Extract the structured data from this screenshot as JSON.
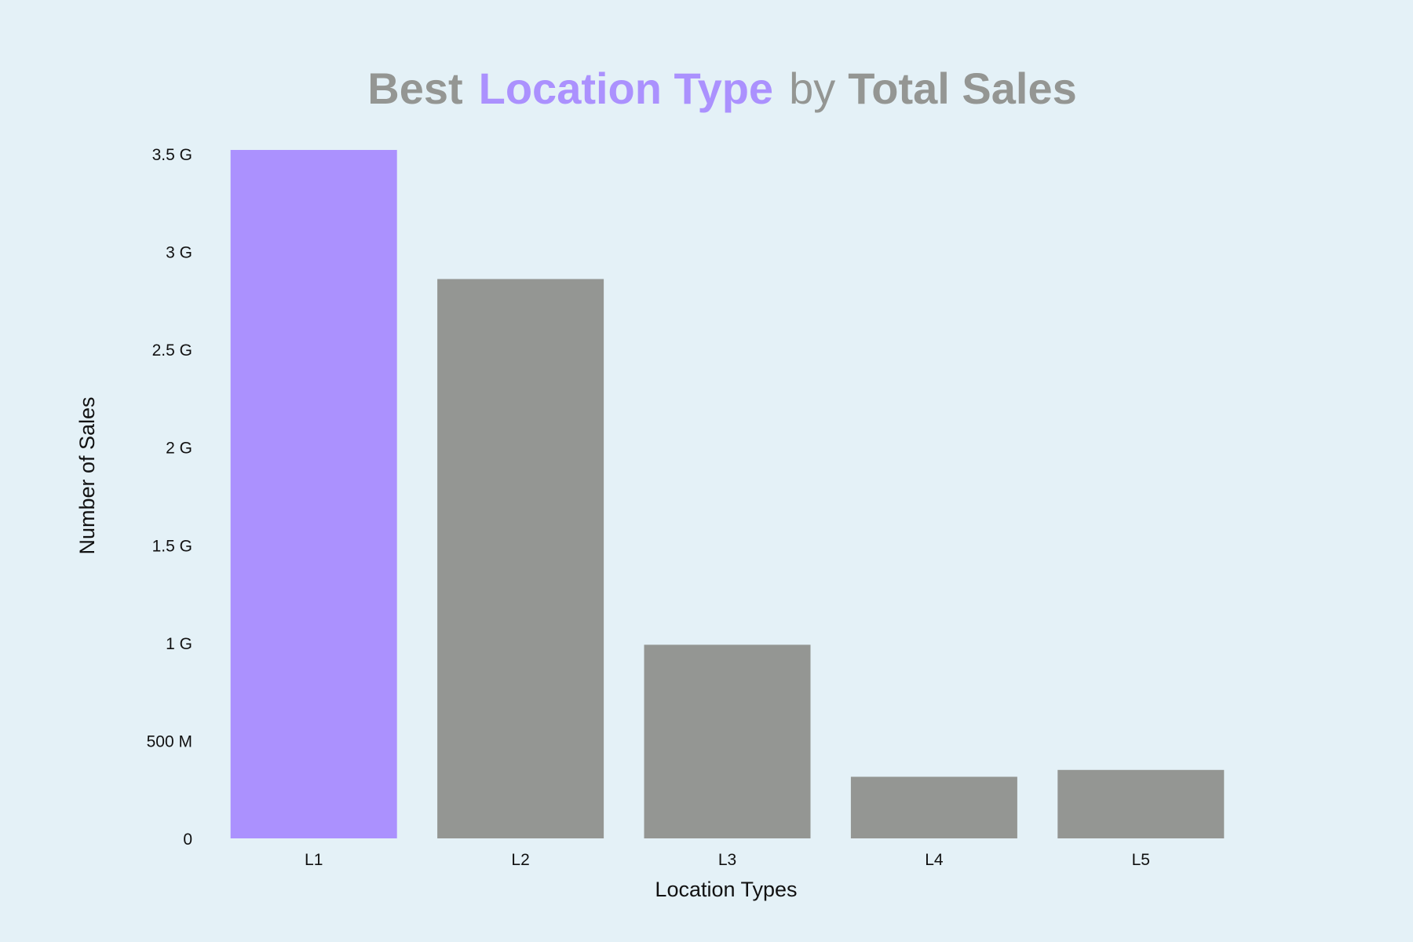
{
  "title": {
    "part1": "Best",
    "part2": "Location Type",
    "part3": "by",
    "part4": "Total Sales"
  },
  "colors": {
    "background": "#e4f1f7",
    "highlight": "#ab91fe",
    "bar": "#949693",
    "title_muted": "#949693",
    "text": "#111111"
  },
  "chart_data": {
    "type": "bar",
    "title": "Best Location Type by Total Sales",
    "xlabel": "Location Types",
    "ylabel": "Number of Sales",
    "categories": [
      "L1",
      "L2",
      "L3",
      "L4",
      "L5"
    ],
    "values": [
      3520000000,
      2860000000,
      990000000,
      315000000,
      350000000
    ],
    "highlight_category": "L1",
    "ylim": [
      0,
      3500000000
    ],
    "yticks": [
      0,
      500000000,
      1000000000,
      1500000000,
      2000000000,
      2500000000,
      3000000000,
      3500000000
    ],
    "ytick_labels": [
      "0",
      "500 M",
      "1 G",
      "1.5 G",
      "2 G",
      "2.5 G",
      "3 G",
      "3.5 G"
    ],
    "grid": false,
    "legend": "none"
  }
}
